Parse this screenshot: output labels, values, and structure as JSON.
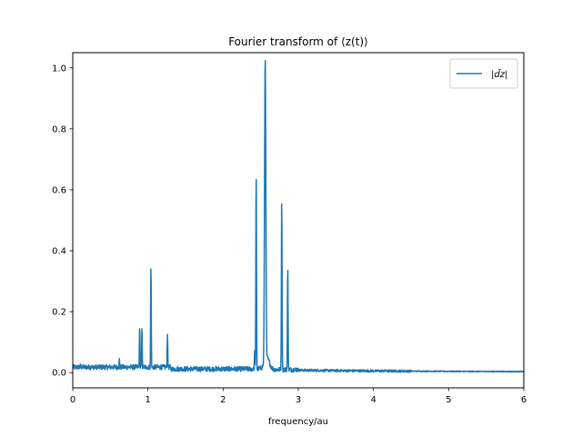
{
  "chart_data": {
    "type": "line",
    "title": "Fourier transform of ⟨z(t)⟩",
    "xlabel": "frequency/au",
    "ylabel": "",
    "xlim": [
      0,
      6
    ],
    "ylim": [
      -0.05,
      1.05
    ],
    "xticks": [
      0,
      1,
      2,
      3,
      4,
      5,
      6
    ],
    "yticks": [
      0.0,
      0.2,
      0.4,
      0.6,
      0.8,
      1.0
    ],
    "xtick_labels": [
      "0",
      "1",
      "2",
      "3",
      "4",
      "5",
      "6"
    ],
    "ytick_labels": [
      "0.0",
      "0.2",
      "0.4",
      "0.6",
      "0.8",
      "1.0"
    ],
    "grid": false,
    "legend": "top-right",
    "series": [
      {
        "name": "|d̃z|",
        "color": "#1f77b4",
        "peaks": [
          {
            "x": 0.1,
            "y": 0.03
          },
          {
            "x": 0.62,
            "y": 0.048
          },
          {
            "x": 0.89,
            "y": 0.15
          },
          {
            "x": 0.92,
            "y": 0.15
          },
          {
            "x": 1.04,
            "y": 0.355
          },
          {
            "x": 1.26,
            "y": 0.125
          },
          {
            "x": 2.42,
            "y": 0.075
          },
          {
            "x": 2.44,
            "y": 0.662
          },
          {
            "x": 2.56,
            "y": 1.0
          },
          {
            "x": 2.78,
            "y": 0.578
          },
          {
            "x": 2.86,
            "y": 0.35
          }
        ]
      }
    ]
  }
}
